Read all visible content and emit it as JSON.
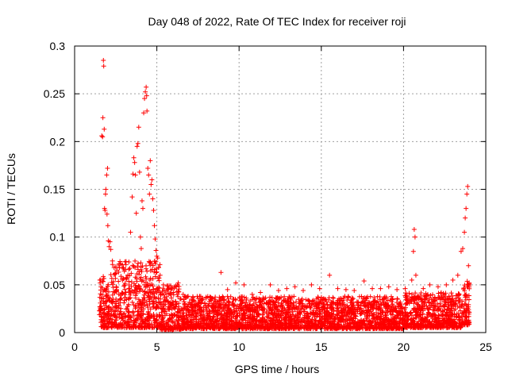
{
  "chart_data": {
    "type": "scatter",
    "title": "Day 048 of 2022, Rate Of TEC Index for receiver roji",
    "xlabel": "GPS time / hours",
    "ylabel": "ROTI / TECUs",
    "xlim": [
      0,
      25
    ],
    "ylim": [
      0,
      0.3
    ],
    "x_ticks": [
      0,
      5,
      10,
      15,
      20,
      25
    ],
    "x_tick_labels": [
      "0",
      "5",
      "10",
      "15",
      "20",
      "25"
    ],
    "y_ticks": [
      0,
      0.05,
      0.1,
      0.15,
      0.2,
      0.25,
      0.3
    ],
    "y_tick_labels": [
      "0",
      "0.05",
      "0.1",
      "0.15",
      "0.2",
      "0.25",
      "0.3"
    ],
    "grid": true,
    "marker": "+",
    "marker_color": "#ff0000",
    "series": [
      {
        "name": "ROTI",
        "points": [
          [
            1.55,
            0.052
          ],
          [
            1.6,
            0.048
          ],
          [
            1.65,
            0.206
          ],
          [
            1.7,
            0.205
          ],
          [
            1.72,
            0.225
          ],
          [
            1.75,
            0.285
          ],
          [
            1.77,
            0.279
          ],
          [
            1.8,
            0.213
          ],
          [
            1.82,
            0.13
          ],
          [
            1.85,
            0.128
          ],
          [
            1.88,
            0.145
          ],
          [
            1.9,
            0.15
          ],
          [
            1.95,
            0.165
          ],
          [
            2.0,
            0.172
          ],
          [
            1.97,
            0.124
          ],
          [
            2.02,
            0.112
          ],
          [
            2.05,
            0.096
          ],
          [
            2.1,
            0.09
          ],
          [
            2.15,
            0.095
          ],
          [
            2.2,
            0.087
          ],
          [
            2.3,
            0.075
          ],
          [
            2.4,
            0.068
          ],
          [
            2.5,
            0.062
          ],
          [
            2.7,
            0.072
          ],
          [
            2.9,
            0.068
          ],
          [
            3.1,
            0.066
          ],
          [
            3.3,
            0.074
          ],
          [
            3.4,
            0.105
          ],
          [
            3.5,
            0.142
          ],
          [
            3.55,
            0.166
          ],
          [
            3.6,
            0.183
          ],
          [
            3.65,
            0.178
          ],
          [
            3.7,
            0.165
          ],
          [
            3.75,
            0.125
          ],
          [
            3.8,
            0.195
          ],
          [
            3.85,
            0.198
          ],
          [
            3.9,
            0.215
          ],
          [
            3.95,
            0.168
          ],
          [
            4.0,
            0.1
          ],
          [
            4.05,
            0.088
          ],
          [
            4.1,
            0.138
          ],
          [
            4.15,
            0.13
          ],
          [
            4.2,
            0.23
          ],
          [
            4.25,
            0.245
          ],
          [
            4.3,
            0.252
          ],
          [
            4.35,
            0.257
          ],
          [
            4.38,
            0.248
          ],
          [
            4.4,
            0.232
          ],
          [
            4.45,
            0.172
          ],
          [
            4.5,
            0.165
          ],
          [
            4.55,
            0.145
          ],
          [
            4.6,
            0.18
          ],
          [
            4.65,
            0.155
          ],
          [
            4.7,
            0.16
          ],
          [
            4.75,
            0.14
          ],
          [
            4.8,
            0.128
          ],
          [
            4.85,
            0.112
          ],
          [
            4.9,
            0.098
          ],
          [
            4.95,
            0.086
          ],
          [
            5.0,
            0.08
          ],
          [
            5.05,
            0.078
          ],
          [
            5.1,
            0.068
          ],
          [
            5.2,
            0.06
          ],
          [
            5.4,
            0.05
          ],
          [
            5.7,
            0.045
          ],
          [
            6.0,
            0.042
          ],
          [
            6.3,
            0.052
          ],
          [
            6.6,
            0.04
          ],
          [
            6.9,
            0.038
          ],
          [
            7.2,
            0.037
          ],
          [
            7.6,
            0.038
          ],
          [
            8.0,
            0.036
          ],
          [
            8.5,
            0.035
          ],
          [
            8.9,
            0.063
          ],
          [
            9.3,
            0.045
          ],
          [
            9.8,
            0.052
          ],
          [
            10.3,
            0.05
          ],
          [
            10.8,
            0.04
          ],
          [
            11.3,
            0.042
          ],
          [
            11.9,
            0.05
          ],
          [
            12.4,
            0.044
          ],
          [
            12.9,
            0.046
          ],
          [
            13.4,
            0.048
          ],
          [
            13.9,
            0.044
          ],
          [
            14.4,
            0.05
          ],
          [
            14.9,
            0.046
          ],
          [
            15.5,
            0.06
          ],
          [
            16.0,
            0.046
          ],
          [
            16.5,
            0.045
          ],
          [
            17.0,
            0.044
          ],
          [
            17.6,
            0.054
          ],
          [
            18.1,
            0.046
          ],
          [
            18.6,
            0.046
          ],
          [
            19.1,
            0.048
          ],
          [
            19.6,
            0.045
          ],
          [
            20.1,
            0.046
          ],
          [
            20.5,
            0.055
          ],
          [
            20.6,
            0.085
          ],
          [
            20.65,
            0.108
          ],
          [
            20.7,
            0.1
          ],
          [
            20.75,
            0.06
          ],
          [
            21.2,
            0.046
          ],
          [
            21.6,
            0.05
          ],
          [
            22.1,
            0.048
          ],
          [
            22.6,
            0.05
          ],
          [
            23.0,
            0.055
          ],
          [
            23.3,
            0.06
          ],
          [
            23.5,
            0.085
          ],
          [
            23.6,
            0.088
          ],
          [
            23.7,
            0.105
          ],
          [
            23.75,
            0.12
          ],
          [
            23.8,
            0.13
          ],
          [
            23.85,
            0.145
          ],
          [
            23.9,
            0.153
          ],
          [
            23.95,
            0.07
          ]
        ],
        "dense_bands": [
          {
            "x_range": [
              1.5,
              2.2
            ],
            "y_range": [
              0.005,
              0.06
            ]
          },
          {
            "x_range": [
              2.2,
              5.2
            ],
            "y_range": [
              0.005,
              0.075
            ]
          },
          {
            "x_range": [
              5.2,
              6.5
            ],
            "y_range": [
              0.003,
              0.05
            ]
          },
          {
            "x_range": [
              6.5,
              20.0
            ],
            "y_range": [
              0.004,
              0.038
            ]
          },
          {
            "x_range": [
              20.0,
              23.5
            ],
            "y_range": [
              0.005,
              0.042
            ]
          },
          {
            "x_range": [
              23.5,
              24.0
            ],
            "y_range": [
              0.008,
              0.055
            ]
          }
        ]
      }
    ]
  }
}
